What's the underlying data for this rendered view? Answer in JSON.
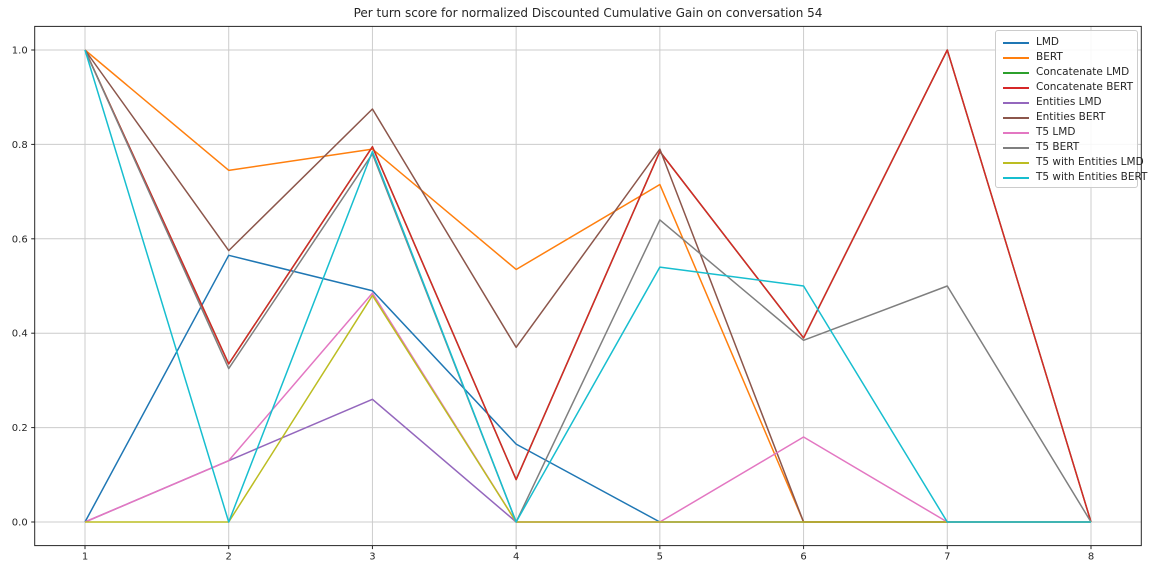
{
  "figure": {
    "background": "#ffffff",
    "text_color": "#262626"
  },
  "chart_data": {
    "type": "line",
    "title": "Per turn score for normalized Discounted Cumulative Gain on conversation 54",
    "xlabel": "",
    "ylabel": "",
    "x": [
      1,
      2,
      3,
      4,
      5,
      6,
      7,
      8
    ],
    "xlim": [
      0.65,
      8.35
    ],
    "ylim": [
      -0.05,
      1.05
    ],
    "xticklabels": [
      "1",
      "2",
      "3",
      "4",
      "5",
      "6",
      "7",
      "8"
    ],
    "ytick_values": [
      0.0,
      0.2,
      0.4,
      0.6,
      0.8,
      1.0
    ],
    "yticklabels": [
      "0.0",
      "0.2",
      "0.4",
      "0.6",
      "0.8",
      "1.0"
    ],
    "grid": true,
    "grid_color": "#cccccc",
    "spine_color": "#262626",
    "legend_position": "upper right",
    "legend_frame_color": "#cccccc",
    "series": [
      {
        "name": "LMD",
        "color": "#1f77b4",
        "values": [
          0.0,
          0.565,
          0.49,
          0.165,
          0.0,
          0.0,
          0.0,
          0.0
        ]
      },
      {
        "name": "BERT",
        "color": "#ff7f0e",
        "values": [
          1.0,
          0.745,
          0.79,
          0.535,
          0.715,
          0.0,
          0.0,
          0.0
        ]
      },
      {
        "name": "Concatenate LMD",
        "color": "#2ca02c",
        "values": [
          1.0,
          0.335,
          0.795,
          0.09,
          0.785,
          0.39,
          1.0,
          0.0
        ]
      },
      {
        "name": "Concatenate BERT",
        "color": "#d62728",
        "values": [
          1.0,
          0.335,
          0.795,
          0.09,
          0.785,
          0.39,
          1.0,
          0.0
        ]
      },
      {
        "name": "Entities LMD",
        "color": "#9467bd",
        "values": [
          0.0,
          0.13,
          0.26,
          0.0,
          0.0,
          0.0,
          0.0,
          0.0
        ]
      },
      {
        "name": "Entities BERT",
        "color": "#8c564b",
        "values": [
          1.0,
          0.575,
          0.875,
          0.37,
          0.79,
          0.0,
          0.0,
          0.0
        ]
      },
      {
        "name": "T5 LMD",
        "color": "#e377c2",
        "values": [
          0.0,
          0.13,
          0.485,
          0.0,
          0.0,
          0.18,
          0.0,
          0.0
        ]
      },
      {
        "name": "T5 BERT",
        "color": "#7f7f7f",
        "values": [
          1.0,
          0.325,
          0.78,
          0.0,
          0.64,
          0.385,
          0.5,
          0.0
        ]
      },
      {
        "name": "T5 with Entities LMD",
        "color": "#bcbd22",
        "values": [
          0.0,
          0.0,
          0.48,
          0.0,
          0.0,
          0.0,
          0.0,
          0.0
        ]
      },
      {
        "name": "T5 with Entities BERT",
        "color": "#17becf",
        "values": [
          1.0,
          0.0,
          0.785,
          0.0,
          0.54,
          0.5,
          0.0,
          0.0
        ]
      }
    ]
  }
}
